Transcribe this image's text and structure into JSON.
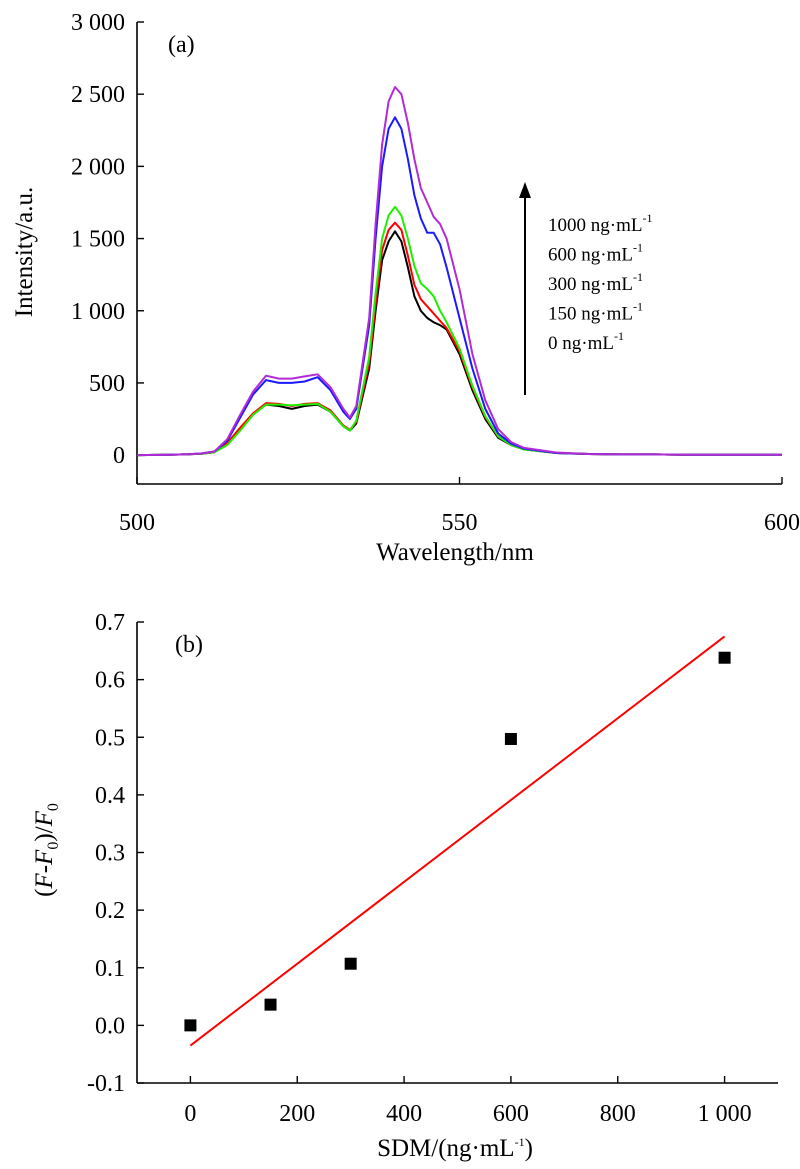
{
  "chart_data": [
    {
      "type": "line",
      "panel_label": "(a)",
      "xlabel": "Wavelength/nm",
      "ylabel": "Intensity/a.u.",
      "xlim": [
        500,
        600
      ],
      "ylim": [
        -200,
        3000
      ],
      "xticks": [
        500,
        550,
        600
      ],
      "xtick_labels": [
        "500",
        "550",
        "600"
      ],
      "yticks": [
        0,
        500,
        1000,
        1500,
        2000,
        2500,
        3000
      ],
      "ytick_labels": [
        "0",
        "500",
        "1 000",
        "1 500",
        "2 000",
        "2 500",
        "3 000"
      ],
      "legend_position": "right",
      "x": [
        500,
        505,
        508,
        510,
        512,
        514,
        516,
        518,
        520,
        522,
        524,
        526,
        528,
        530,
        532,
        533,
        534,
        536,
        537,
        538,
        539,
        540,
        541,
        542,
        543,
        544,
        545,
        546,
        547,
        548,
        550,
        552,
        554,
        556,
        558,
        560,
        565,
        570,
        575,
        580,
        585,
        590,
        595,
        600
      ],
      "series": [
        {
          "legend": "0 ng·mL",
          "legend_sup": "-1",
          "color": "#000000",
          "values": [
            0,
            3,
            6,
            10,
            20,
            80,
            180,
            280,
            350,
            340,
            320,
            340,
            350,
            300,
            200,
            170,
            220,
            600,
            1000,
            1350,
            1480,
            1550,
            1480,
            1300,
            1100,
            1000,
            950,
            920,
            900,
            870,
            700,
            450,
            250,
            120,
            70,
            40,
            15,
            8,
            5,
            5,
            3,
            3,
            2,
            2
          ]
        },
        {
          "legend": "150 ng·mL",
          "legend_sup": "-1",
          "color": "#ff0000",
          "values": [
            0,
            3,
            6,
            10,
            20,
            85,
            190,
            290,
            360,
            355,
            340,
            355,
            360,
            310,
            205,
            175,
            230,
            640,
            1050,
            1420,
            1560,
            1610,
            1560,
            1380,
            1180,
            1080,
            1030,
            980,
            930,
            880,
            720,
            470,
            265,
            130,
            75,
            45,
            15,
            8,
            5,
            5,
            3,
            3,
            2,
            2
          ]
        },
        {
          "legend": "300 ng·mL",
          "legend_sup": "-1",
          "color": "#22ee00",
          "values": [
            0,
            3,
            6,
            10,
            20,
            70,
            170,
            280,
            350,
            350,
            345,
            350,
            355,
            300,
            200,
            170,
            240,
            680,
            1120,
            1500,
            1660,
            1720,
            1660,
            1500,
            1310,
            1190,
            1150,
            1100,
            1000,
            920,
            740,
            480,
            270,
            130,
            70,
            40,
            15,
            8,
            5,
            5,
            3,
            3,
            2,
            2
          ]
        },
        {
          "legend": "600 ng·mL",
          "legend_sup": "-1",
          "color": "#1a1aff",
          "values": [
            0,
            3,
            6,
            12,
            25,
            100,
            260,
            420,
            520,
            500,
            500,
            510,
            540,
            450,
            300,
            250,
            320,
            900,
            1500,
            2000,
            2260,
            2340,
            2260,
            2050,
            1800,
            1640,
            1540,
            1540,
            1460,
            1300,
            950,
            600,
            320,
            150,
            80,
            45,
            15,
            8,
            5,
            5,
            3,
            3,
            2,
            2
          ]
        },
        {
          "legend": "1000 ng·mL",
          "legend_sup": "-1",
          "color": "#b12bd6",
          "values": [
            0,
            3,
            6,
            12,
            25,
            110,
            280,
            440,
            550,
            530,
            530,
            545,
            560,
            470,
            320,
            260,
            340,
            950,
            1600,
            2150,
            2450,
            2550,
            2500,
            2300,
            2050,
            1850,
            1750,
            1650,
            1600,
            1500,
            1150,
            700,
            380,
            180,
            90,
            50,
            18,
            8,
            5,
            5,
            3,
            3,
            2,
            2
          ]
        }
      ]
    },
    {
      "type": "scatter",
      "panel_label": "(b)",
      "xlabel": "SDM/(ng·mL",
      "xlabel_sup": "-1",
      "xlabel_end": ")",
      "ylabel": "(F-F0)/F0",
      "xlim": [
        -100,
        1100
      ],
      "ylim": [
        -0.1,
        0.7
      ],
      "xticks": [
        0,
        200,
        400,
        600,
        800,
        1000
      ],
      "xtick_labels": [
        "0",
        "200",
        "400",
        "600",
        "800",
        "1 000"
      ],
      "yticks": [
        -0.1,
        0,
        0.1,
        0.2,
        0.3,
        0.4,
        0.5,
        0.6,
        0.7
      ],
      "ytick_labels": [
        "-0.1",
        "0.0",
        "0.1",
        "0.2",
        "0.3",
        "0.4",
        "0.5",
        "0.6",
        "0.7"
      ],
      "points": {
        "x": [
          0,
          150,
          300,
          600,
          1000
        ],
        "y": [
          0.0,
          0.036,
          0.107,
          0.497,
          0.638
        ]
      },
      "fit_line": {
        "x": [
          0,
          1000
        ],
        "y": [
          -0.035,
          0.675
        ],
        "color": "#ff0000"
      }
    }
  ]
}
